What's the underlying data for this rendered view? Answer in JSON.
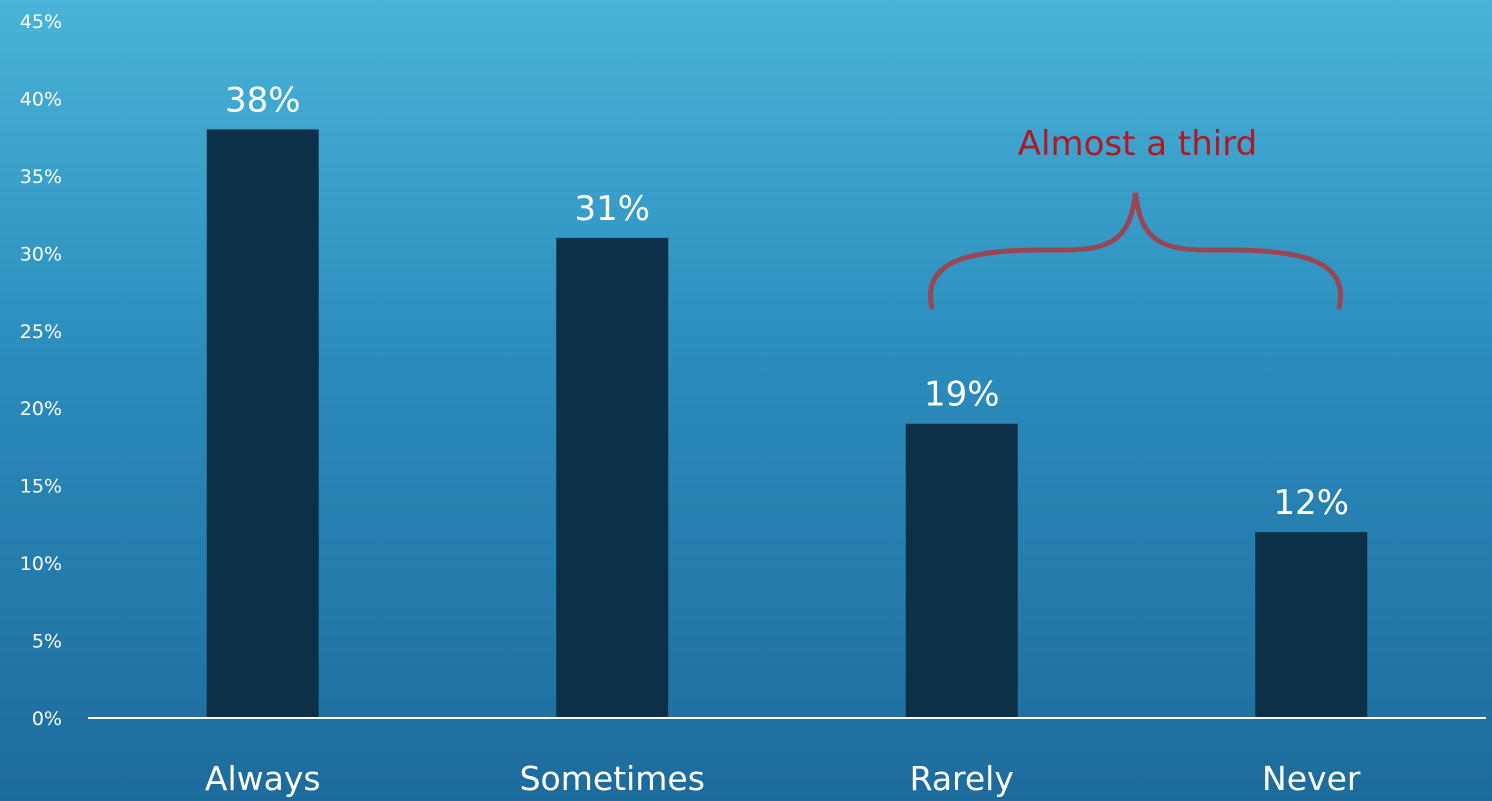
{
  "chart_data": {
    "type": "bar",
    "categories": [
      "Always",
      "Sometimes",
      "Rarely",
      "Never"
    ],
    "values": [
      38,
      31,
      19,
      12
    ],
    "data_labels": [
      "38%",
      "31%",
      "19%",
      "12%"
    ],
    "y_ticks": [
      "0%",
      "5%",
      "10%",
      "15%",
      "20%",
      "25%",
      "30%",
      "35%",
      "40%",
      "45%"
    ],
    "ylim": [
      0,
      45
    ],
    "grid": false,
    "legend": "none",
    "colors": {
      "bar": "#0d3049",
      "axis": "#ffffff",
      "text": "#ffffff",
      "annotation": "#b01828",
      "brace": "#9a4553",
      "bg_top": "#49b3d8",
      "bg_bottom": "#1d6b9d"
    },
    "annotation": {
      "text": "Almost a third",
      "spans": [
        "Rarely",
        "Never"
      ]
    }
  }
}
